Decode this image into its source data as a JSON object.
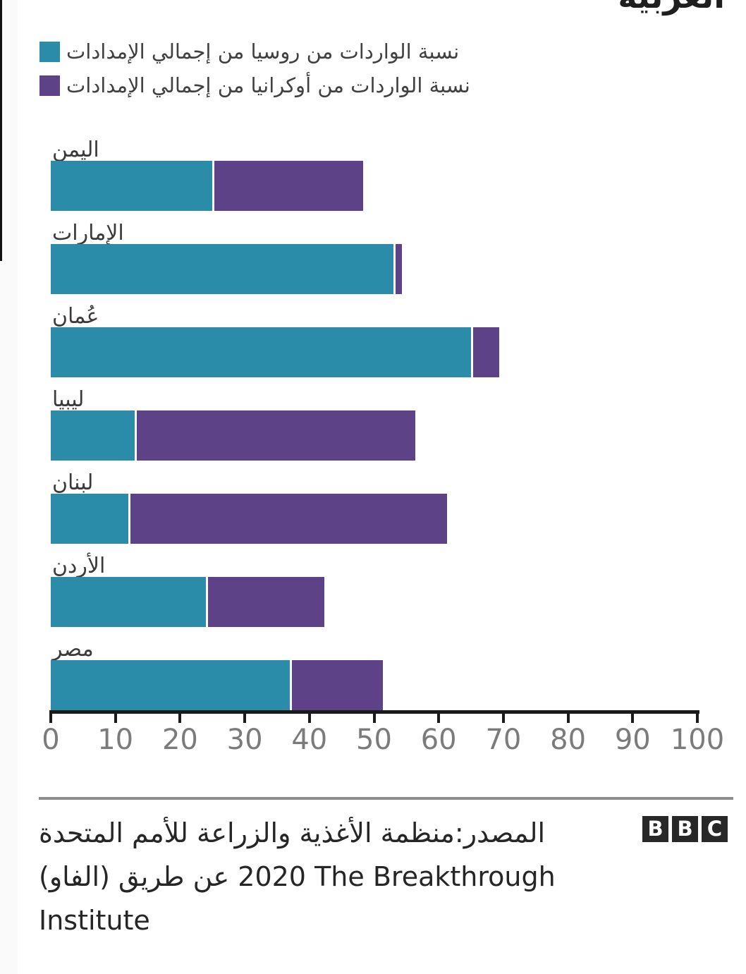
{
  "page": {
    "title_fragment": "العربية"
  },
  "chart_data": {
    "type": "bar",
    "orientation": "horizontal",
    "stacked": true,
    "categories": [
      "اليمن",
      "الإمارات",
      "عُمان",
      "ليبيا",
      "لبنان",
      "الأردن",
      "مصر"
    ],
    "series": [
      {
        "name": "نسبة الواردات من روسيا من إجمالي الإمدادات",
        "color": "#2a8ca8",
        "values": [
          25,
          53,
          65,
          13,
          12,
          24,
          37
        ]
      },
      {
        "name": "نسبة الواردات من أوكرانيا من إجمالي الإمدادات",
        "color": "#5d4288",
        "values": [
          23,
          1,
          4,
          43,
          49,
          18,
          14
        ]
      }
    ],
    "xlim": [
      0,
      100
    ],
    "x_ticks": [
      0,
      10,
      20,
      30,
      40,
      50,
      60,
      70,
      80,
      90,
      100
    ],
    "grid": false,
    "legend_position": "top-left"
  },
  "footer": {
    "source_full": "المصدر:منظمة الأغذية والزراعة للأمم المتحدة (الفاو) 2020 عن طريق The Breakthrough Institute",
    "source_lines": [
      "المصدر:منظمة الأغذية والزراعة للأمم المتحدة",
      "(الفاو) 2020 عن طريق The Breakthrough",
      "Institute"
    ],
    "logo_letters": [
      "B",
      "B",
      "C"
    ]
  },
  "colors": {
    "russia": "#2a8ca8",
    "ukraine": "#5d4288",
    "axis": "#1a1a1a",
    "tick_label": "#7b7b7b",
    "country_label": "#3a3a3a",
    "legend_text": "#404040",
    "footer_text": "#262626",
    "divider": "#8c8c8c",
    "logo_bg": "#282828"
  }
}
